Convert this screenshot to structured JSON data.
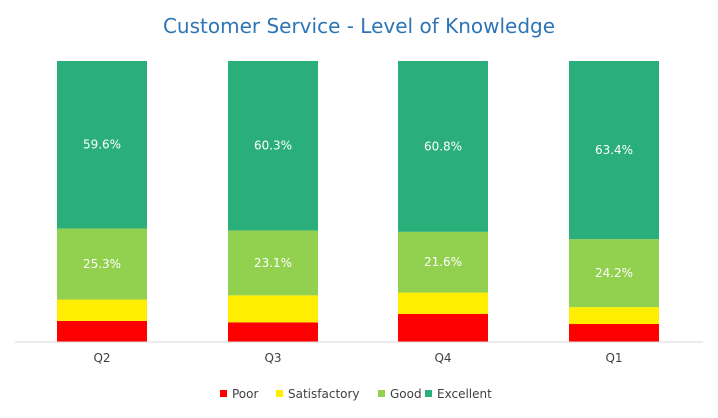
{
  "chart_data": {
    "type": "bar",
    "stacked": true,
    "percent_stacked": true,
    "title": "Customer Service - Level of Knowledge",
    "xlabel": "",
    "ylabel": "",
    "ylim": [
      0,
      100
    ],
    "gridlines": false,
    "legend_position": "bottom",
    "categories": [
      "Q2",
      "Q3",
      "Q4",
      "Q1"
    ],
    "series": [
      {
        "name": "Poor",
        "color": "#ff0000",
        "values": [
          7.5,
          7.0,
          10.0,
          6.4
        ],
        "labels": [
          "",
          "",
          "",
          ""
        ]
      },
      {
        "name": "Satisfactory",
        "color": "#ffee00",
        "values": [
          7.6,
          9.6,
          7.6,
          6.0
        ],
        "labels": [
          "",
          "",
          "",
          ""
        ]
      },
      {
        "name": "Good",
        "color": "#92d050",
        "values": [
          25.3,
          23.1,
          21.6,
          24.2
        ],
        "labels": [
          "25.3%",
          "23.1%",
          "21.6%",
          "24.2%"
        ]
      },
      {
        "name": "Excellent",
        "color": "#2aaf7a",
        "values": [
          59.6,
          60.3,
          60.8,
          63.4
        ],
        "labels": [
          "59.6%",
          "60.3%",
          "60.8%",
          "63.4%"
        ]
      }
    ],
    "title_color": "#2e75b6",
    "axis_color": "#d9d9d9"
  }
}
